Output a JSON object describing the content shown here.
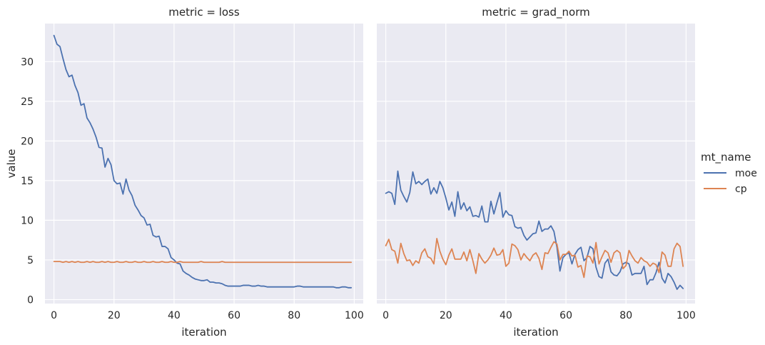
{
  "chart_data": {
    "type": "line",
    "xlabel": "iteration",
    "ylabel": "value",
    "xlim": [
      -3,
      103
    ],
    "ylim": [
      -0.5,
      34.8
    ],
    "xticks": [
      0,
      20,
      40,
      60,
      80,
      100
    ],
    "yticks": [
      0,
      5,
      10,
      15,
      20,
      25,
      30
    ],
    "grid": true,
    "legend": {
      "title": "mt_name",
      "placement": "right",
      "entries": [
        "moe",
        "cp"
      ]
    },
    "colors": {
      "moe": "#4c72b0",
      "cp": "#dd8452",
      "panel_bg": "#eaeaf2",
      "grid": "#ffffff"
    },
    "panels": [
      {
        "title": "metric = loss",
        "series": [
          {
            "name": "moe",
            "x": [
              0,
              1,
              2,
              3,
              4,
              5,
              6,
              7,
              8,
              9,
              10,
              11,
              12,
              13,
              14,
              15,
              16,
              17,
              18,
              19,
              20,
              21,
              22,
              23,
              24,
              25,
              26,
              27,
              28,
              29,
              30,
              31,
              32,
              33,
              34,
              35,
              36,
              37,
              38,
              39,
              40,
              41,
              42,
              43,
              44,
              45,
              46,
              47,
              48,
              49,
              50,
              51,
              52,
              53,
              54,
              55,
              56,
              57,
              58,
              59,
              60,
              61,
              62,
              63,
              64,
              65,
              66,
              67,
              68,
              69,
              70,
              71,
              72,
              73,
              74,
              75,
              76,
              77,
              78,
              79,
              80,
              81,
              82,
              83,
              84,
              85,
              86,
              87,
              88,
              89,
              90,
              91,
              92,
              93,
              94,
              95,
              96,
              97,
              98,
              99
            ],
            "values": [
              33.3,
              32.2,
              31.9,
              30.4,
              29.0,
              28.1,
              28.3,
              27.0,
              26.1,
              24.5,
              24.7,
              22.9,
              22.3,
              21.5,
              20.5,
              19.2,
              19.1,
              16.7,
              17.8,
              17.0,
              15.0,
              14.6,
              14.7,
              13.3,
              15.2,
              13.8,
              13.1,
              11.9,
              11.3,
              10.6,
              10.3,
              9.4,
              9.5,
              8.1,
              7.9,
              8.0,
              6.7,
              6.7,
              6.4,
              5.3,
              5.0,
              4.6,
              4.5,
              3.6,
              3.3,
              3.1,
              2.8,
              2.6,
              2.5,
              2.4,
              2.4,
              2.5,
              2.2,
              2.2,
              2.1,
              2.1,
              2.0,
              1.8,
              1.7,
              1.7,
              1.7,
              1.7,
              1.7,
              1.8,
              1.8,
              1.8,
              1.7,
              1.7,
              1.8,
              1.7,
              1.7,
              1.6,
              1.6,
              1.6,
              1.6,
              1.6,
              1.6,
              1.6,
              1.6,
              1.6,
              1.6,
              1.7,
              1.7,
              1.6,
              1.6,
              1.6,
              1.6,
              1.6,
              1.6,
              1.6,
              1.6,
              1.6,
              1.6,
              1.6,
              1.5,
              1.5,
              1.6,
              1.6,
              1.5,
              1.5
            ]
          },
          {
            "name": "cp",
            "x": [
              0,
              1,
              2,
              3,
              4,
              5,
              6,
              7,
              8,
              9,
              10,
              11,
              12,
              13,
              14,
              15,
              16,
              17,
              18,
              19,
              20,
              21,
              22,
              23,
              24,
              25,
              26,
              27,
              28,
              29,
              30,
              31,
              32,
              33,
              34,
              35,
              36,
              37,
              38,
              39,
              40,
              41,
              42,
              43,
              44,
              45,
              46,
              47,
              48,
              49,
              50,
              51,
              52,
              53,
              54,
              55,
              56,
              57,
              58,
              59,
              60,
              61,
              62,
              63,
              64,
              65,
              66,
              67,
              68,
              69,
              70,
              71,
              72,
              73,
              74,
              75,
              76,
              77,
              78,
              79,
              80,
              81,
              82,
              83,
              84,
              85,
              86,
              87,
              88,
              89,
              90,
              91,
              92,
              93,
              94,
              95,
              96,
              97,
              98,
              99
            ],
            "values": [
              4.8,
              4.8,
              4.8,
              4.7,
              4.8,
              4.7,
              4.8,
              4.7,
              4.8,
              4.7,
              4.7,
              4.8,
              4.7,
              4.8,
              4.7,
              4.7,
              4.8,
              4.7,
              4.8,
              4.7,
              4.7,
              4.8,
              4.7,
              4.7,
              4.8,
              4.7,
              4.7,
              4.8,
              4.7,
              4.7,
              4.8,
              4.7,
              4.7,
              4.8,
              4.7,
              4.7,
              4.8,
              4.7,
              4.7,
              4.8,
              4.7,
              4.7,
              4.8,
              4.7,
              4.7,
              4.7,
              4.7,
              4.7,
              4.7,
              4.8,
              4.7,
              4.7,
              4.7,
              4.7,
              4.7,
              4.7,
              4.8,
              4.7,
              4.7,
              4.7,
              4.7,
              4.7,
              4.7,
              4.7,
              4.7,
              4.7,
              4.7,
              4.7,
              4.7,
              4.7,
              4.7,
              4.7,
              4.7,
              4.7,
              4.7,
              4.7,
              4.7,
              4.7,
              4.7,
              4.7,
              4.7,
              4.7,
              4.7,
              4.7,
              4.7,
              4.7,
              4.7,
              4.7,
              4.7,
              4.7,
              4.7,
              4.7,
              4.7,
              4.7,
              4.7,
              4.7,
              4.7,
              4.7,
              4.7,
              4.7
            ]
          }
        ]
      },
      {
        "title": "metric = grad_norm",
        "series": [
          {
            "name": "moe",
            "x": [
              0,
              1,
              2,
              3,
              4,
              5,
              6,
              7,
              8,
              9,
              10,
              11,
              12,
              13,
              14,
              15,
              16,
              17,
              18,
              19,
              20,
              21,
              22,
              23,
              24,
              25,
              26,
              27,
              28,
              29,
              30,
              31,
              32,
              33,
              34,
              35,
              36,
              37,
              38,
              39,
              40,
              41,
              42,
              43,
              44,
              45,
              46,
              47,
              48,
              49,
              50,
              51,
              52,
              53,
              54,
              55,
              56,
              57,
              58,
              59,
              60,
              61,
              62,
              63,
              64,
              65,
              66,
              67,
              68,
              69,
              70,
              71,
              72,
              73,
              74,
              75,
              76,
              77,
              78,
              79,
              80,
              81,
              82,
              83,
              84,
              85,
              86,
              87,
              88,
              89,
              90,
              91,
              92,
              93,
              94,
              95,
              96,
              97,
              98,
              99
            ],
            "values": [
              13.4,
              13.6,
              13.4,
              12.0,
              16.2,
              13.8,
              13.0,
              12.3,
              13.5,
              16.1,
              14.6,
              14.9,
              14.5,
              14.9,
              15.2,
              13.3,
              14.1,
              13.4,
              14.9,
              14.1,
              12.8,
              11.3,
              12.3,
              10.5,
              13.6,
              11.4,
              12.2,
              11.2,
              11.7,
              10.5,
              10.6,
              10.4,
              11.8,
              9.8,
              9.8,
              12.4,
              10.8,
              12.2,
              13.5,
              10.4,
              11.2,
              10.7,
              10.6,
              9.2,
              9.0,
              9.1,
              8.1,
              7.5,
              7.9,
              8.3,
              8.4,
              9.9,
              8.6,
              8.9,
              8.9,
              9.3,
              8.6,
              6.6,
              3.6,
              5.3,
              5.7,
              5.9,
              4.5,
              5.7,
              6.3,
              6.6,
              4.9,
              5.3,
              6.7,
              6.4,
              4.1,
              2.9,
              2.7,
              4.6,
              5.1,
              3.5,
              3.1,
              3.0,
              3.5,
              4.5,
              4.7,
              4.5,
              3.1,
              3.3,
              3.3,
              3.3,
              4.2,
              1.9,
              2.5,
              2.5,
              3.4,
              4.7,
              2.7,
              2.1,
              3.3,
              2.9,
              2.2,
              1.3,
              1.8,
              1.4
            ]
          },
          {
            "name": "cp",
            "x": [
              0,
              1,
              2,
              3,
              4,
              5,
              6,
              7,
              8,
              9,
              10,
              11,
              12,
              13,
              14,
              15,
              16,
              17,
              18,
              19,
              20,
              21,
              22,
              23,
              24,
              25,
              26,
              27,
              28,
              29,
              30,
              31,
              32,
              33,
              34,
              35,
              36,
              37,
              38,
              39,
              40,
              41,
              42,
              43,
              44,
              45,
              46,
              47,
              48,
              49,
              50,
              51,
              52,
              53,
              54,
              55,
              56,
              57,
              58,
              59,
              60,
              61,
              62,
              63,
              64,
              65,
              66,
              67,
              68,
              69,
              70,
              71,
              72,
              73,
              74,
              75,
              76,
              77,
              78,
              79,
              80,
              81,
              82,
              83,
              84,
              85,
              86,
              87,
              88,
              89,
              90,
              91,
              92,
              93,
              94,
              95,
              96,
              97,
              98,
              99
            ],
            "values": [
              6.8,
              7.6,
              6.3,
              6.1,
              4.6,
              7.1,
              5.8,
              4.9,
              5.0,
              4.3,
              4.9,
              4.6,
              5.9,
              6.4,
              5.4,
              5.2,
              4.5,
              7.7,
              6.1,
              5.1,
              4.4,
              5.6,
              6.4,
              5.1,
              5.1,
              5.1,
              6.0,
              4.9,
              6.3,
              4.9,
              3.3,
              5.8,
              5.1,
              4.6,
              5.0,
              5.6,
              6.5,
              5.6,
              5.7,
              6.3,
              4.2,
              4.6,
              7.0,
              6.8,
              6.3,
              5.0,
              5.8,
              5.3,
              4.9,
              5.6,
              5.9,
              5.2,
              3.8,
              5.9,
              5.8,
              6.6,
              7.3,
              7.0,
              5.0,
              5.7,
              5.7,
              6.1,
              5.5,
              5.6,
              4.1,
              4.3,
              2.8,
              5.5,
              5.4,
              4.6,
              7.2,
              4.5,
              5.4,
              6.2,
              5.9,
              4.7,
              5.9,
              6.2,
              5.9,
              3.9,
              4.3,
              6.2,
              5.5,
              4.9,
              4.6,
              5.3,
              4.9,
              4.7,
              4.2,
              4.6,
              4.4,
              3.4,
              6.0,
              5.6,
              4.2,
              4.2,
              6.4,
              7.1,
              6.7,
              4.2
            ]
          }
        ]
      }
    ]
  }
}
